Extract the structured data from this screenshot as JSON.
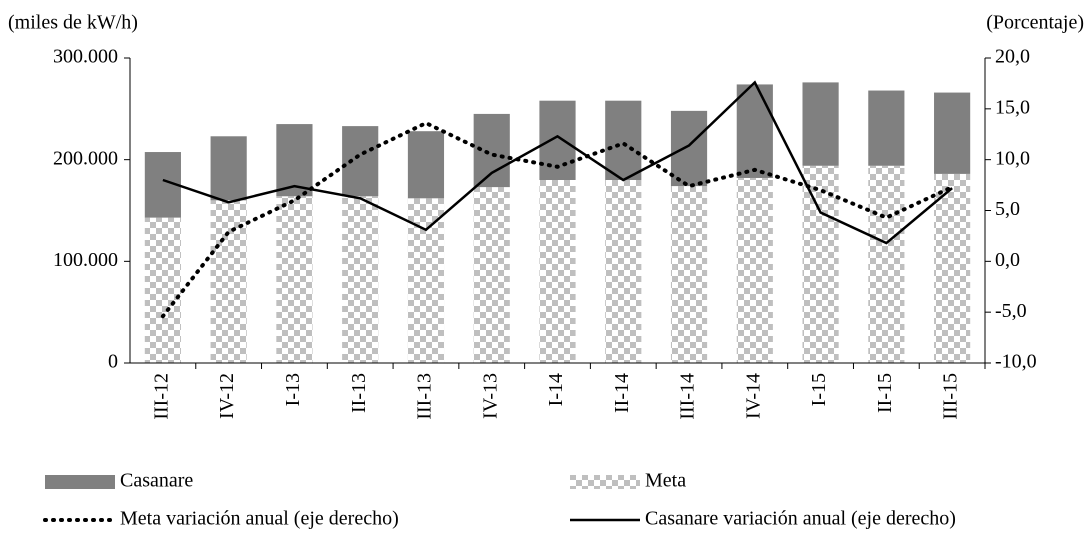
{
  "chart_data": {
    "type": "bar-line",
    "y_label": "(miles de kW/h)",
    "y2_label": "(Porcentaje)",
    "categories": [
      "III-12",
      "IV-12",
      "I-13",
      "II-13",
      "III-13",
      "IV-13",
      "I-14",
      "II-14",
      "III-14",
      "IV-14",
      "I-15",
      "II-15",
      "III-15"
    ],
    "series": [
      {
        "name": "Casanare",
        "type": "bar",
        "color": "#808080",
        "values": [
          64500,
          63000,
          71000,
          69000,
          66000,
          72000,
          78000,
          78000,
          74000,
          92000,
          82000,
          74000,
          80000
        ]
      },
      {
        "name": "Meta",
        "type": "bar",
        "color": "#bfbfbf",
        "pattern": "checker",
        "values": [
          143000,
          160000,
          164000,
          164000,
          162000,
          173000,
          180000,
          180000,
          174000,
          182000,
          194000,
          194000,
          186000
        ]
      },
      {
        "name": "Meta variación anual (eje derecho)",
        "type": "line",
        "axis": "y2",
        "color": "#000000",
        "dash": "dotted",
        "values": [
          -5.4,
          2.9,
          6.0,
          10.5,
          13.6,
          10.5,
          9.3,
          11.6,
          7.4,
          9.0,
          7.0,
          4.3,
          7.3
        ]
      },
      {
        "name": "Casanare variación anual (eje derecho)",
        "type": "line",
        "axis": "y2",
        "color": "#000000",
        "dash": "solid",
        "values": [
          8.0,
          5.8,
          7.4,
          6.2,
          3.1,
          8.7,
          12.3,
          8.0,
          11.4,
          17.6,
          4.8,
          1.8,
          7.2
        ]
      }
    ],
    "ylim": [
      0,
      300000
    ],
    "yticks": [
      0,
      {
        "value": 100000,
        "label": "100.000"
      },
      {
        "value": 200000,
        "label": "200.000"
      },
      {
        "value": 300000,
        "label": "300.000"
      }
    ],
    "y2lim": [
      -10,
      20
    ],
    "y2ticks": [
      {
        "value": -10,
        "label": "-10,0"
      },
      {
        "value": -5,
        "label": "-5,0"
      },
      {
        "value": 0,
        "label": "0,0"
      },
      {
        "value": 5,
        "label": "5,0"
      },
      {
        "value": 10,
        "label": "10,0"
      },
      {
        "value": 15,
        "label": "15,0"
      },
      {
        "value": 20,
        "label": "20,0"
      }
    ],
    "legend": "bottom"
  }
}
